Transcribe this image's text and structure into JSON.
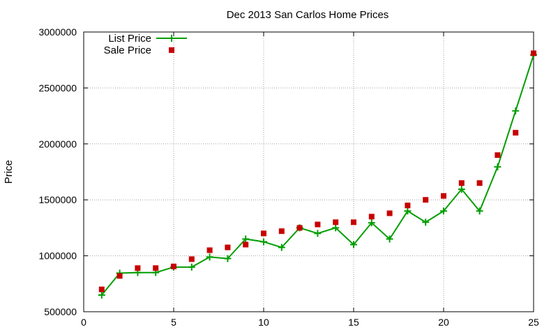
{
  "chart_data": {
    "type": "line",
    "title": "Dec 2013 San Carlos Home Prices",
    "xlabel": "",
    "ylabel": "Price",
    "xlim": [
      0,
      25
    ],
    "ylim": [
      500000,
      3000000
    ],
    "xticks": [
      0,
      5,
      10,
      15,
      20,
      25
    ],
    "xtick_labels": [
      "0",
      "5",
      "10",
      "15",
      "20",
      "25"
    ],
    "yticks": [
      500000,
      1000000,
      1500000,
      2000000,
      2500000,
      3000000
    ],
    "ytick_labels": [
      "500000",
      "1000000",
      "1500000",
      "2000000",
      "2500000",
      "3000000"
    ],
    "grid": true,
    "legend_position": "top-left",
    "x": [
      1,
      2,
      3,
      4,
      5,
      6,
      7,
      8,
      9,
      10,
      11,
      12,
      13,
      14,
      15,
      16,
      17,
      18,
      19,
      20,
      21,
      22,
      23,
      24,
      25
    ],
    "series": [
      {
        "name": "List Price",
        "style": "line-points",
        "marker": "plus",
        "color": "#009e00",
        "values": [
          649000,
          845000,
          850000,
          850000,
          899000,
          899000,
          989000,
          975000,
          1150000,
          1125000,
          1075000,
          1250000,
          1200000,
          1250000,
          1100000,
          1295000,
          1150000,
          1400000,
          1300000,
          1400000,
          1595000,
          1400000,
          1795000,
          2295000,
          2795000
        ]
      },
      {
        "name": "Sale Price",
        "style": "points",
        "marker": "square",
        "color": "#c80000",
        "values": [
          700000,
          820000,
          890000,
          890000,
          905000,
          970000,
          1050000,
          1075000,
          1100000,
          1200000,
          1220000,
          1250000,
          1280000,
          1300000,
          1300000,
          1350000,
          1380000,
          1450000,
          1500000,
          1535000,
          1650000,
          1650000,
          1900000,
          2100000,
          2810000
        ]
      }
    ]
  }
}
